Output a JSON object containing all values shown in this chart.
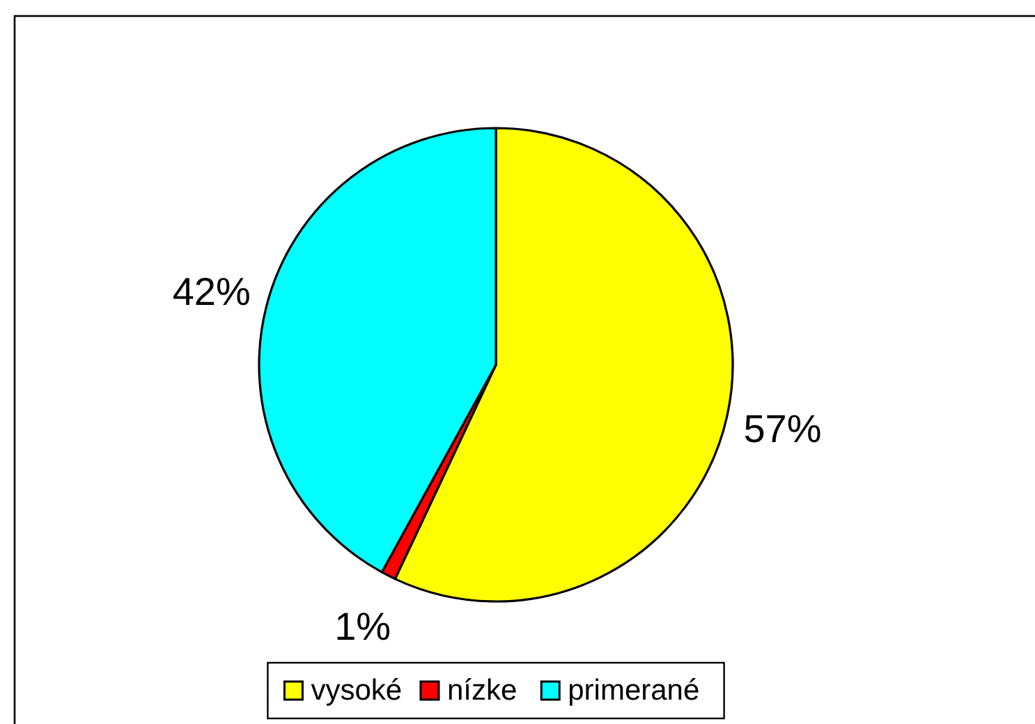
{
  "chart_data": {
    "type": "pie",
    "categories": [
      "vysoké",
      "nízke",
      "primerané"
    ],
    "values": [
      57,
      1,
      42
    ],
    "colors": [
      "#ffff00",
      "#ff0000",
      "#00ffff"
    ],
    "value_labels": [
      "57%",
      "1%",
      "42%"
    ],
    "legend": "bottom"
  }
}
